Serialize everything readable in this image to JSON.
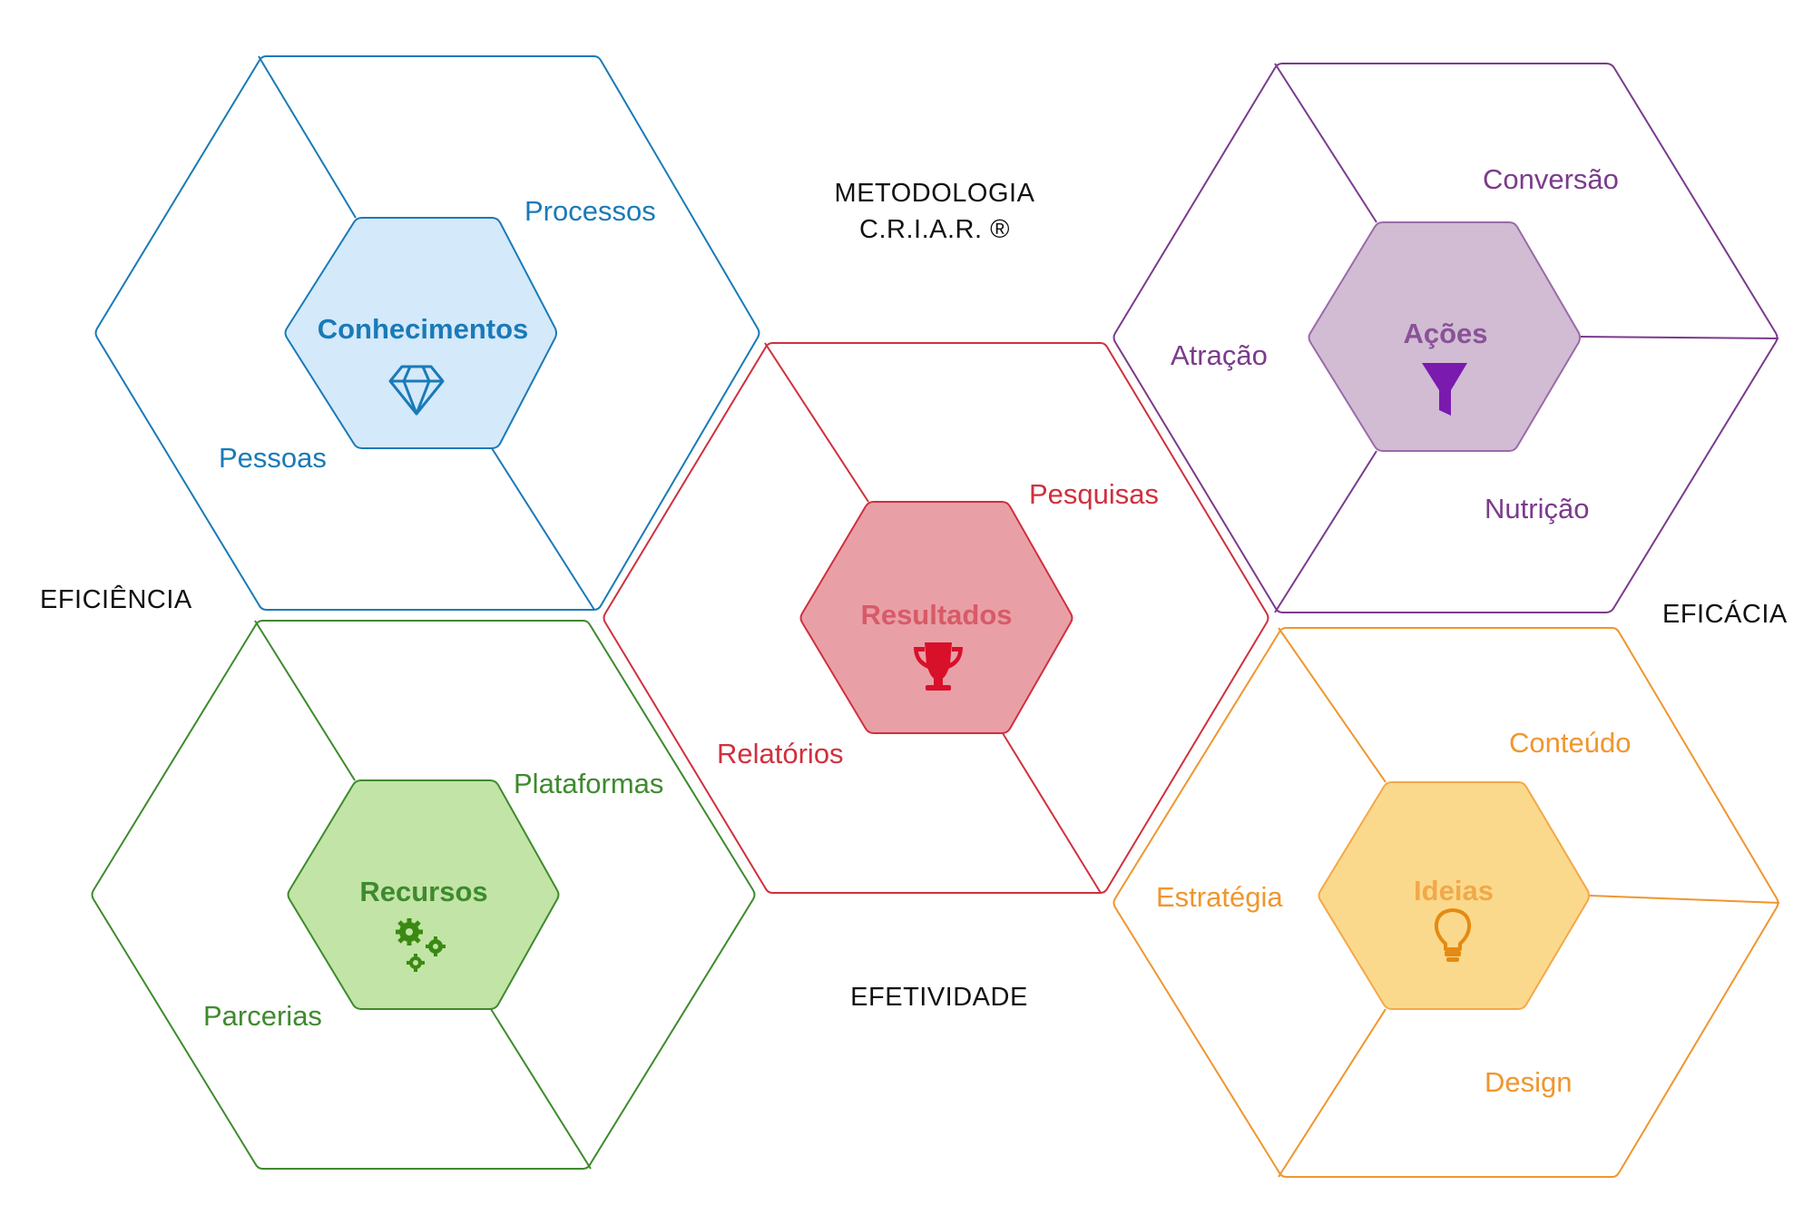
{
  "header": {
    "line1": "METODOLOGIA",
    "line2": "C.R.I.A.R. ®"
  },
  "side_labels": {
    "left": "EFICIÊNCIA",
    "right": "EFICÁCIA",
    "bottom": "EFETIVIDADE"
  },
  "hexagons": {
    "conhecimentos": {
      "title": "Conhecimentos",
      "icon": "diamond-icon",
      "color": "#1a7ab8",
      "fill": "#d4e9fa",
      "items": [
        "Processos",
        "Pessoas"
      ]
    },
    "resultados": {
      "title": "Resultados",
      "icon": "trophy-icon",
      "color": "#d0303e",
      "fill": "#e8a0a6",
      "items": [
        "Pesquisas",
        "Relatórios"
      ]
    },
    "acoes": {
      "title": "Ações",
      "icon": "funnel-icon",
      "color": "#7b3b8c",
      "fill": "#d1bcd4",
      "items": [
        "Conversão",
        "Atração",
        "Nutrição"
      ]
    },
    "recursos": {
      "title": "Recursos",
      "icon": "gears-icon",
      "color": "#3e8a2e",
      "fill": "#c2e4a6",
      "items": [
        "Plataformas",
        "Parcerias"
      ]
    },
    "ideias": {
      "title": "Ideias",
      "icon": "lightbulb-icon",
      "color": "#f0962e",
      "fill": "#fbd98c",
      "items": [
        "Conteúdo",
        "Estratégia",
        "Design"
      ]
    }
  }
}
